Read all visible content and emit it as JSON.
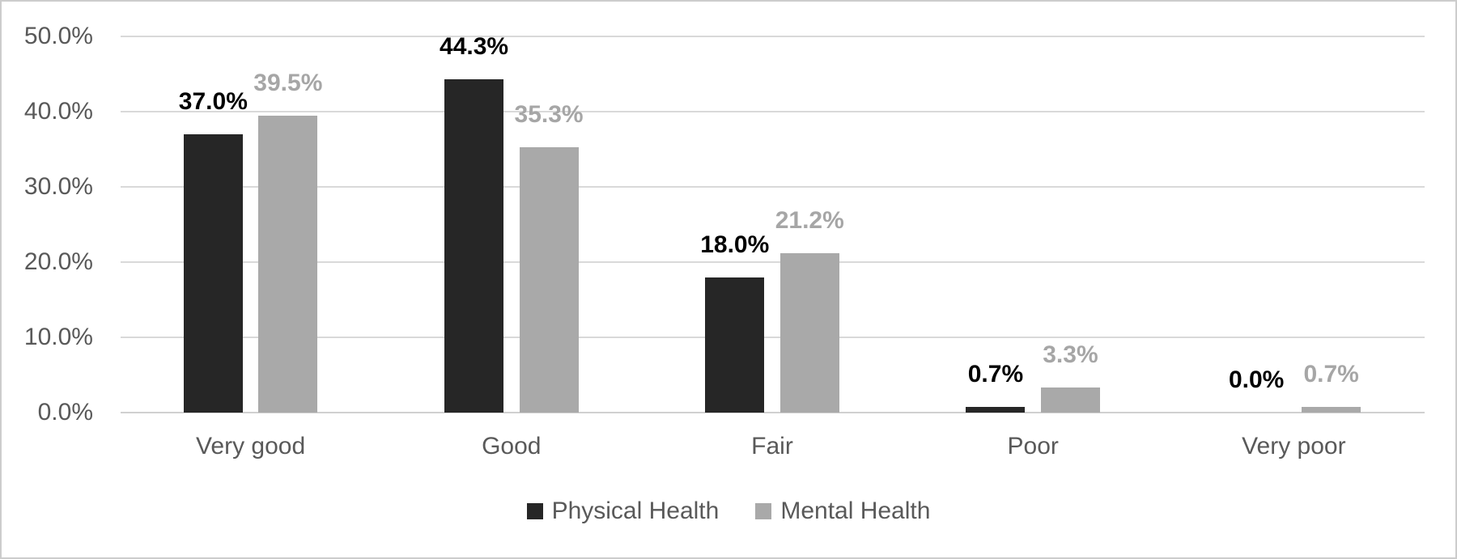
{
  "chart_data": {
    "type": "bar",
    "categories": [
      "Very good",
      "Good",
      "Fair",
      "Poor",
      "Very poor"
    ],
    "series": [
      {
        "name": "Physical Health",
        "color": "#262626",
        "label_color": "#000000",
        "values": [
          37.0,
          44.3,
          18.0,
          0.7,
          0.0
        ],
        "data_labels": [
          "37.0%",
          "44.3%",
          "18.0%",
          "0.7%",
          "0.0%"
        ]
      },
      {
        "name": "Mental Health",
        "color": "#a9a9a9",
        "label_color": "#a6a6a6",
        "values": [
          39.5,
          35.3,
          21.2,
          3.3,
          0.7
        ],
        "data_labels": [
          "39.5%",
          "35.3%",
          "21.2%",
          "3.3%",
          "0.7%"
        ]
      }
    ],
    "y_ticks": [
      {
        "value": 50,
        "label": "50.0%"
      },
      {
        "value": 40,
        "label": "40.0%"
      },
      {
        "value": 30,
        "label": "30.0%"
      },
      {
        "value": 20,
        "label": "20.0%"
      },
      {
        "value": 10,
        "label": "10.0%"
      },
      {
        "value": 0,
        "label": "0.0%"
      }
    ],
    "ylim": [
      0,
      50
    ],
    "grid": true,
    "legend_position": "bottom",
    "legend": [
      "Physical Health",
      "Mental Health"
    ]
  },
  "style": {
    "background": "#ffffff",
    "border_color": "#cccccc",
    "axis_text_color": "#595959",
    "gridline_color": "#d9d9d9",
    "axis_line_color": "#d0d0d0"
  }
}
